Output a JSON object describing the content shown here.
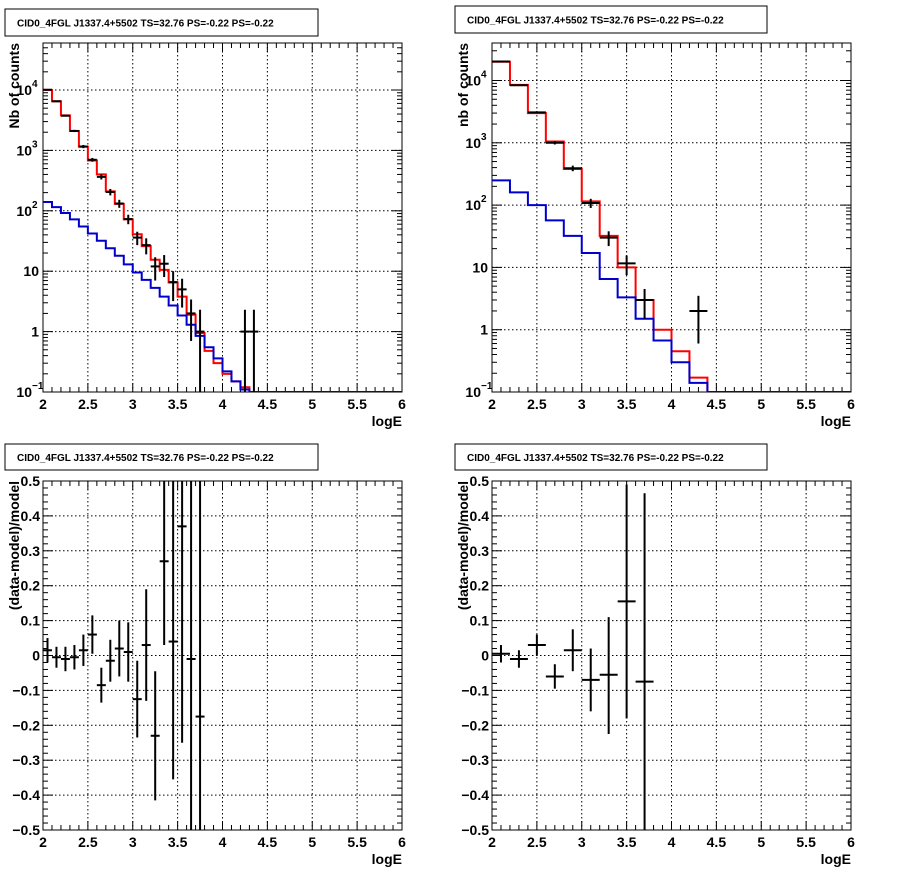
{
  "colors": {
    "data": "#000000",
    "total_model": "#ff0000",
    "source_model": "#0000cc",
    "grid": "#000000"
  },
  "chart_data": [
    {
      "type": "line",
      "title": "CID0_4FGL J1337.4+5502 TS=32.76 PS=-0.22 PS=-0.22",
      "xlabel": "logE",
      "ylabel": "Nb of counts",
      "xlim": [
        2,
        6
      ],
      "ylim": [
        0.1,
        60000
      ],
      "yscale": "log",
      "grid": true,
      "x_ticks": [
        "2",
        "2.5",
        "3",
        "3.5",
        "4",
        "4.5",
        "5",
        "5.5",
        "6"
      ],
      "y_ticks": [
        {
          "value": 0.1,
          "label": "10",
          "exp": "−1"
        },
        {
          "value": 1,
          "label": "1",
          "exp": ""
        },
        {
          "value": 10,
          "label": "10",
          "exp": ""
        },
        {
          "value": 100,
          "label": "10",
          "exp": "2"
        },
        {
          "value": 1000,
          "label": "10",
          "exp": "3"
        },
        {
          "value": 10000,
          "label": "10",
          "exp": "4"
        }
      ],
      "bin_edges": [
        2.0,
        2.1,
        2.2,
        2.3,
        2.4,
        2.5,
        2.6,
        2.7,
        2.8,
        2.9,
        3.0,
        3.1,
        3.2,
        3.3,
        3.4,
        3.5,
        3.6,
        3.7,
        3.8,
        3.9,
        4.0,
        4.1,
        4.2,
        4.3,
        4.4,
        4.5,
        4.6,
        4.7,
        4.8,
        4.9,
        5.0,
        5.1,
        5.2,
        5.3,
        5.4,
        5.5,
        5.6,
        5.7,
        5.8,
        5.9,
        6.0
      ],
      "series": [
        {
          "name": "",
          "role": "total_model",
          "values": [
            10000,
            6500,
            3800,
            2100,
            1150,
            680,
            400,
            210,
            130,
            72,
            41,
            26,
            15.5,
            10.5,
            6.5,
            3.8,
            1.9,
            0.95,
            0.48,
            0.3,
            0.2,
            0.15,
            0.12,
            0.1,
            0.1,
            0.1,
            0.1,
            0.1,
            0.1,
            0.1,
            0.1,
            0.1,
            0.1,
            0.1,
            0.1,
            0.1,
            0.1,
            0.1,
            0.1,
            0.1
          ]
        },
        {
          "name": "",
          "role": "source_model",
          "values": [
            140,
            115,
            92,
            72,
            55,
            42,
            32,
            24,
            18,
            13,
            9.5,
            7.2,
            5.3,
            3.8,
            2.7,
            1.85,
            1.3,
            0.85,
            0.55,
            0.36,
            0.22,
            0.15,
            0.11,
            0.1,
            0.1,
            0.1,
            0.1,
            0.1,
            0.1,
            0.1,
            0.1,
            0.1,
            0.1,
            0.1,
            0.1,
            0.1,
            0.1,
            0.1,
            0.1,
            0.1
          ]
        }
      ],
      "points": [
        {
          "x": 2.05,
          "y": 10100,
          "lo": 9900,
          "hi": 10300
        },
        {
          "x": 2.15,
          "y": 6500,
          "lo": 6330,
          "hi": 6660
        },
        {
          "x": 2.25,
          "y": 3750,
          "lo": 3630,
          "hi": 3870
        },
        {
          "x": 2.35,
          "y": 2100,
          "lo": 2010,
          "hi": 2190
        },
        {
          "x": 2.45,
          "y": 1160,
          "lo": 1090,
          "hi": 1230
        },
        {
          "x": 2.55,
          "y": 700,
          "lo": 650,
          "hi": 750
        },
        {
          "x": 2.65,
          "y": 365,
          "lo": 330,
          "hi": 400
        },
        {
          "x": 2.75,
          "y": 205,
          "lo": 180,
          "hi": 230
        },
        {
          "x": 2.85,
          "y": 132,
          "lo": 112,
          "hi": 152
        },
        {
          "x": 2.95,
          "y": 73,
          "lo": 60,
          "hi": 86
        },
        {
          "x": 3.05,
          "y": 36,
          "lo": 27,
          "hi": 45
        },
        {
          "x": 3.15,
          "y": 27,
          "lo": 19,
          "hi": 35
        },
        {
          "x": 3.25,
          "y": 12,
          "lo": 7,
          "hi": 17
        },
        {
          "x": 3.35,
          "y": 13.3,
          "lo": 8,
          "hi": 18.5
        },
        {
          "x": 3.45,
          "y": 6.6,
          "lo": 3.2,
          "hi": 10
        },
        {
          "x": 3.55,
          "y": 5,
          "lo": 2.5,
          "hi": 7.5
        },
        {
          "x": 3.65,
          "y": 2,
          "lo": 0.7,
          "hi": 3.4
        },
        {
          "x": 3.75,
          "y": 1,
          "lo": 0.1,
          "hi": 2.3
        },
        {
          "x": 4.25,
          "y": 1,
          "lo": 0.1,
          "hi": 2.3
        },
        {
          "x": 4.35,
          "y": 1,
          "lo": 0.1,
          "hi": 2.3
        }
      ]
    },
    {
      "type": "line",
      "title": "CID0_4FGL J1337.4+5502 TS=32.76 PS=-0.22 PS=-0.22",
      "xlabel": "logE",
      "ylabel": "nb of counts",
      "xlim": [
        2,
        6
      ],
      "ylim": [
        0.1,
        40000
      ],
      "yscale": "log",
      "grid": true,
      "x_ticks": [
        "2",
        "2.5",
        "3",
        "3.5",
        "4",
        "4.5",
        "5",
        "5.5",
        "6"
      ],
      "y_ticks": [
        {
          "value": 0.1,
          "label": "10",
          "exp": "−1"
        },
        {
          "value": 1,
          "label": "1",
          "exp": ""
        },
        {
          "value": 10,
          "label": "10",
          "exp": ""
        },
        {
          "value": 100,
          "label": "10",
          "exp": "2"
        },
        {
          "value": 1000,
          "label": "10",
          "exp": "3"
        },
        {
          "value": 10000,
          "label": "10",
          "exp": "4"
        }
      ],
      "bin_edges": [
        2.0,
        2.2,
        2.4,
        2.6,
        2.8,
        3.0,
        3.2,
        3.4,
        3.6,
        3.8,
        4.0,
        4.2,
        4.4,
        4.6,
        4.8,
        5.0,
        5.2,
        5.4,
        5.6,
        5.8,
        6.0
      ],
      "series": [
        {
          "name": "",
          "role": "total_model",
          "values": [
            20000,
            8500,
            3000,
            1050,
            380,
            115,
            32,
            10,
            3,
            1,
            0.45,
            0.17,
            0.1,
            0.1,
            0.1,
            0.1,
            0.1,
            0.1,
            0.1,
            0.1
          ]
        },
        {
          "name": "",
          "role": "source_model",
          "values": [
            250,
            160,
            100,
            57,
            32,
            17,
            6.5,
            3.3,
            1.5,
            0.67,
            0.3,
            0.14,
            0.1,
            0.1,
            0.1,
            0.1,
            0.1,
            0.1,
            0.1,
            0.1
          ]
        }
      ],
      "points": [
        {
          "x": 2.1,
          "y": 20200,
          "lo": 20000,
          "hi": 20400
        },
        {
          "x": 2.3,
          "y": 8400,
          "lo": 8240,
          "hi": 8560
        },
        {
          "x": 2.5,
          "y": 3080,
          "lo": 2970,
          "hi": 3190
        },
        {
          "x": 2.7,
          "y": 1000,
          "lo": 940,
          "hi": 1060
        },
        {
          "x": 2.9,
          "y": 390,
          "lo": 350,
          "hi": 430
        },
        {
          "x": 3.1,
          "y": 108,
          "lo": 90,
          "hi": 126
        },
        {
          "x": 3.3,
          "y": 30,
          "lo": 22,
          "hi": 38
        },
        {
          "x": 3.5,
          "y": 11.6,
          "lo": 7.5,
          "hi": 15.5
        },
        {
          "x": 3.7,
          "y": 3,
          "lo": 1.5,
          "hi": 4.5
        },
        {
          "x": 4.3,
          "y": 2,
          "lo": 0.6,
          "hi": 3.5
        }
      ]
    },
    {
      "type": "scatter",
      "title": "CID0_4FGL J1337.4+5502 TS=32.76 PS=-0.22 PS=-0.22",
      "xlabel": "logE",
      "ylabel": "(data-model)/model",
      "xlim": [
        2,
        6
      ],
      "ylim": [
        -0.5,
        0.5
      ],
      "grid": true,
      "x_ticks": [
        "2",
        "2.5",
        "3",
        "3.5",
        "4",
        "4.5",
        "5",
        "5.5",
        "6"
      ],
      "y_ticks": [
        "−0.5",
        "−0.4",
        "−0.3",
        "−0.2",
        "−0.1",
        "0",
        "0.1",
        "0.2",
        "0.3",
        "0.4",
        "0.5"
      ],
      "bin_width": 0.1,
      "points": [
        {
          "x": 2.05,
          "y": 0.015,
          "lo": -0.02,
          "hi": 0.05
        },
        {
          "x": 2.15,
          "y": -0.005,
          "lo": -0.035,
          "hi": 0.025
        },
        {
          "x": 2.25,
          "y": -0.01,
          "lo": -0.045,
          "hi": 0.025
        },
        {
          "x": 2.35,
          "y": -0.005,
          "lo": -0.04,
          "hi": 0.03
        },
        {
          "x": 2.45,
          "y": 0.015,
          "lo": -0.03,
          "hi": 0.06
        },
        {
          "x": 2.55,
          "y": 0.06,
          "lo": 0.005,
          "hi": 0.115
        },
        {
          "x": 2.65,
          "y": -0.085,
          "lo": -0.135,
          "hi": -0.035
        },
        {
          "x": 2.75,
          "y": -0.015,
          "lo": -0.075,
          "hi": 0.045
        },
        {
          "x": 2.85,
          "y": 0.02,
          "lo": -0.06,
          "hi": 0.1
        },
        {
          "x": 2.95,
          "y": 0.01,
          "lo": -0.075,
          "hi": 0.095
        },
        {
          "x": 3.05,
          "y": -0.125,
          "lo": -0.235,
          "hi": -0.015
        },
        {
          "x": 3.15,
          "y": 0.03,
          "lo": -0.13,
          "hi": 0.19
        },
        {
          "x": 3.25,
          "y": -0.23,
          "lo": -0.415,
          "hi": -0.045
        },
        {
          "x": 3.35,
          "y": 0.27,
          "lo": 0.03,
          "hi": 0.5
        },
        {
          "x": 3.45,
          "y": 0.04,
          "lo": -0.355,
          "hi": 0.5
        },
        {
          "x": 3.55,
          "y": 0.37,
          "lo": -0.25,
          "hi": 0.5
        },
        {
          "x": 3.65,
          "y": -0.01,
          "lo": -0.5,
          "hi": 0.5
        },
        {
          "x": 3.75,
          "y": -0.175,
          "lo": -0.5,
          "hi": 0.5
        }
      ]
    },
    {
      "type": "scatter",
      "title": "CID0_4FGL J1337.4+5502 TS=32.76 PS=-0.22 PS=-0.22",
      "xlabel": "logE",
      "ylabel": "(data-model)/model",
      "xlim": [
        2,
        6
      ],
      "ylim": [
        -0.5,
        0.5
      ],
      "grid": true,
      "x_ticks": [
        "2",
        "2.5",
        "3",
        "3.5",
        "4",
        "4.5",
        "5",
        "5.5",
        "6"
      ],
      "y_ticks": [
        "−0.5",
        "−0.4",
        "−0.3",
        "−0.2",
        "−0.1",
        "0",
        "0.1",
        "0.2",
        "0.3",
        "0.4",
        "0.5"
      ],
      "bin_width": 0.2,
      "points": [
        {
          "x": 2.1,
          "y": 0.005,
          "lo": -0.02,
          "hi": 0.03
        },
        {
          "x": 2.3,
          "y": -0.01,
          "lo": -0.035,
          "hi": 0.015
        },
        {
          "x": 2.5,
          "y": 0.03,
          "lo": 0.0,
          "hi": 0.06
        },
        {
          "x": 2.7,
          "y": -0.06,
          "lo": -0.095,
          "hi": -0.025
        },
        {
          "x": 2.9,
          "y": 0.015,
          "lo": -0.045,
          "hi": 0.075
        },
        {
          "x": 3.1,
          "y": -0.07,
          "lo": -0.16,
          "hi": 0.02
        },
        {
          "x": 3.3,
          "y": -0.055,
          "lo": -0.225,
          "hi": 0.11
        },
        {
          "x": 3.5,
          "y": 0.155,
          "lo": -0.18,
          "hi": 0.49
        },
        {
          "x": 3.7,
          "y": -0.075,
          "lo": -0.5,
          "hi": 0.465
        }
      ]
    }
  ]
}
